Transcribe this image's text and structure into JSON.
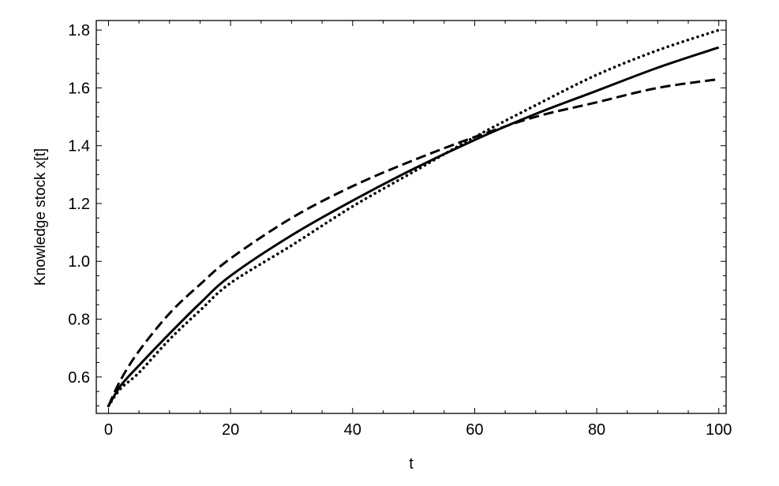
{
  "chart_data": {
    "type": "line",
    "title": "",
    "xlabel": "t",
    "ylabel": "Knowledge stock x[t]",
    "xlim": [
      -2,
      101.2
    ],
    "ylim": [
      0.474,
      1.833
    ],
    "x_ticks": [
      "0",
      "20",
      "40",
      "60",
      "80",
      "100"
    ],
    "x_tick_values": [
      0,
      20,
      40,
      60,
      80,
      100
    ],
    "y_ticks": [
      "0.6",
      "0.8",
      "1.0",
      "1.2",
      "1.4",
      "1.6",
      "1.8"
    ],
    "y_tick_values": [
      0.6,
      0.8,
      1.0,
      1.2,
      1.4,
      1.6,
      1.8
    ],
    "x_minor_step": 5,
    "y_minor_step": 0.05,
    "grid": false,
    "legend": "none",
    "x": [
      0,
      2,
      5,
      10,
      15,
      20,
      30,
      40,
      50,
      60,
      70,
      80,
      90,
      100
    ],
    "series": [
      {
        "style": "solid",
        "color": "#000000",
        "values": [
          0.5,
          0.57,
          0.64,
          0.75,
          0.855,
          0.95,
          1.09,
          1.21,
          1.32,
          1.42,
          1.51,
          1.59,
          1.67,
          1.74
        ]
      },
      {
        "style": "dashed",
        "color": "#000000",
        "values": [
          0.5,
          0.59,
          0.69,
          0.82,
          0.92,
          1.01,
          1.15,
          1.26,
          1.35,
          1.43,
          1.5,
          1.55,
          1.6,
          1.63
        ]
      },
      {
        "style": "dotted",
        "color": "#000000",
        "values": [
          0.5,
          0.56,
          0.615,
          0.73,
          0.83,
          0.925,
          1.055,
          1.19,
          1.31,
          1.43,
          1.54,
          1.645,
          1.73,
          1.8
        ]
      }
    ]
  }
}
